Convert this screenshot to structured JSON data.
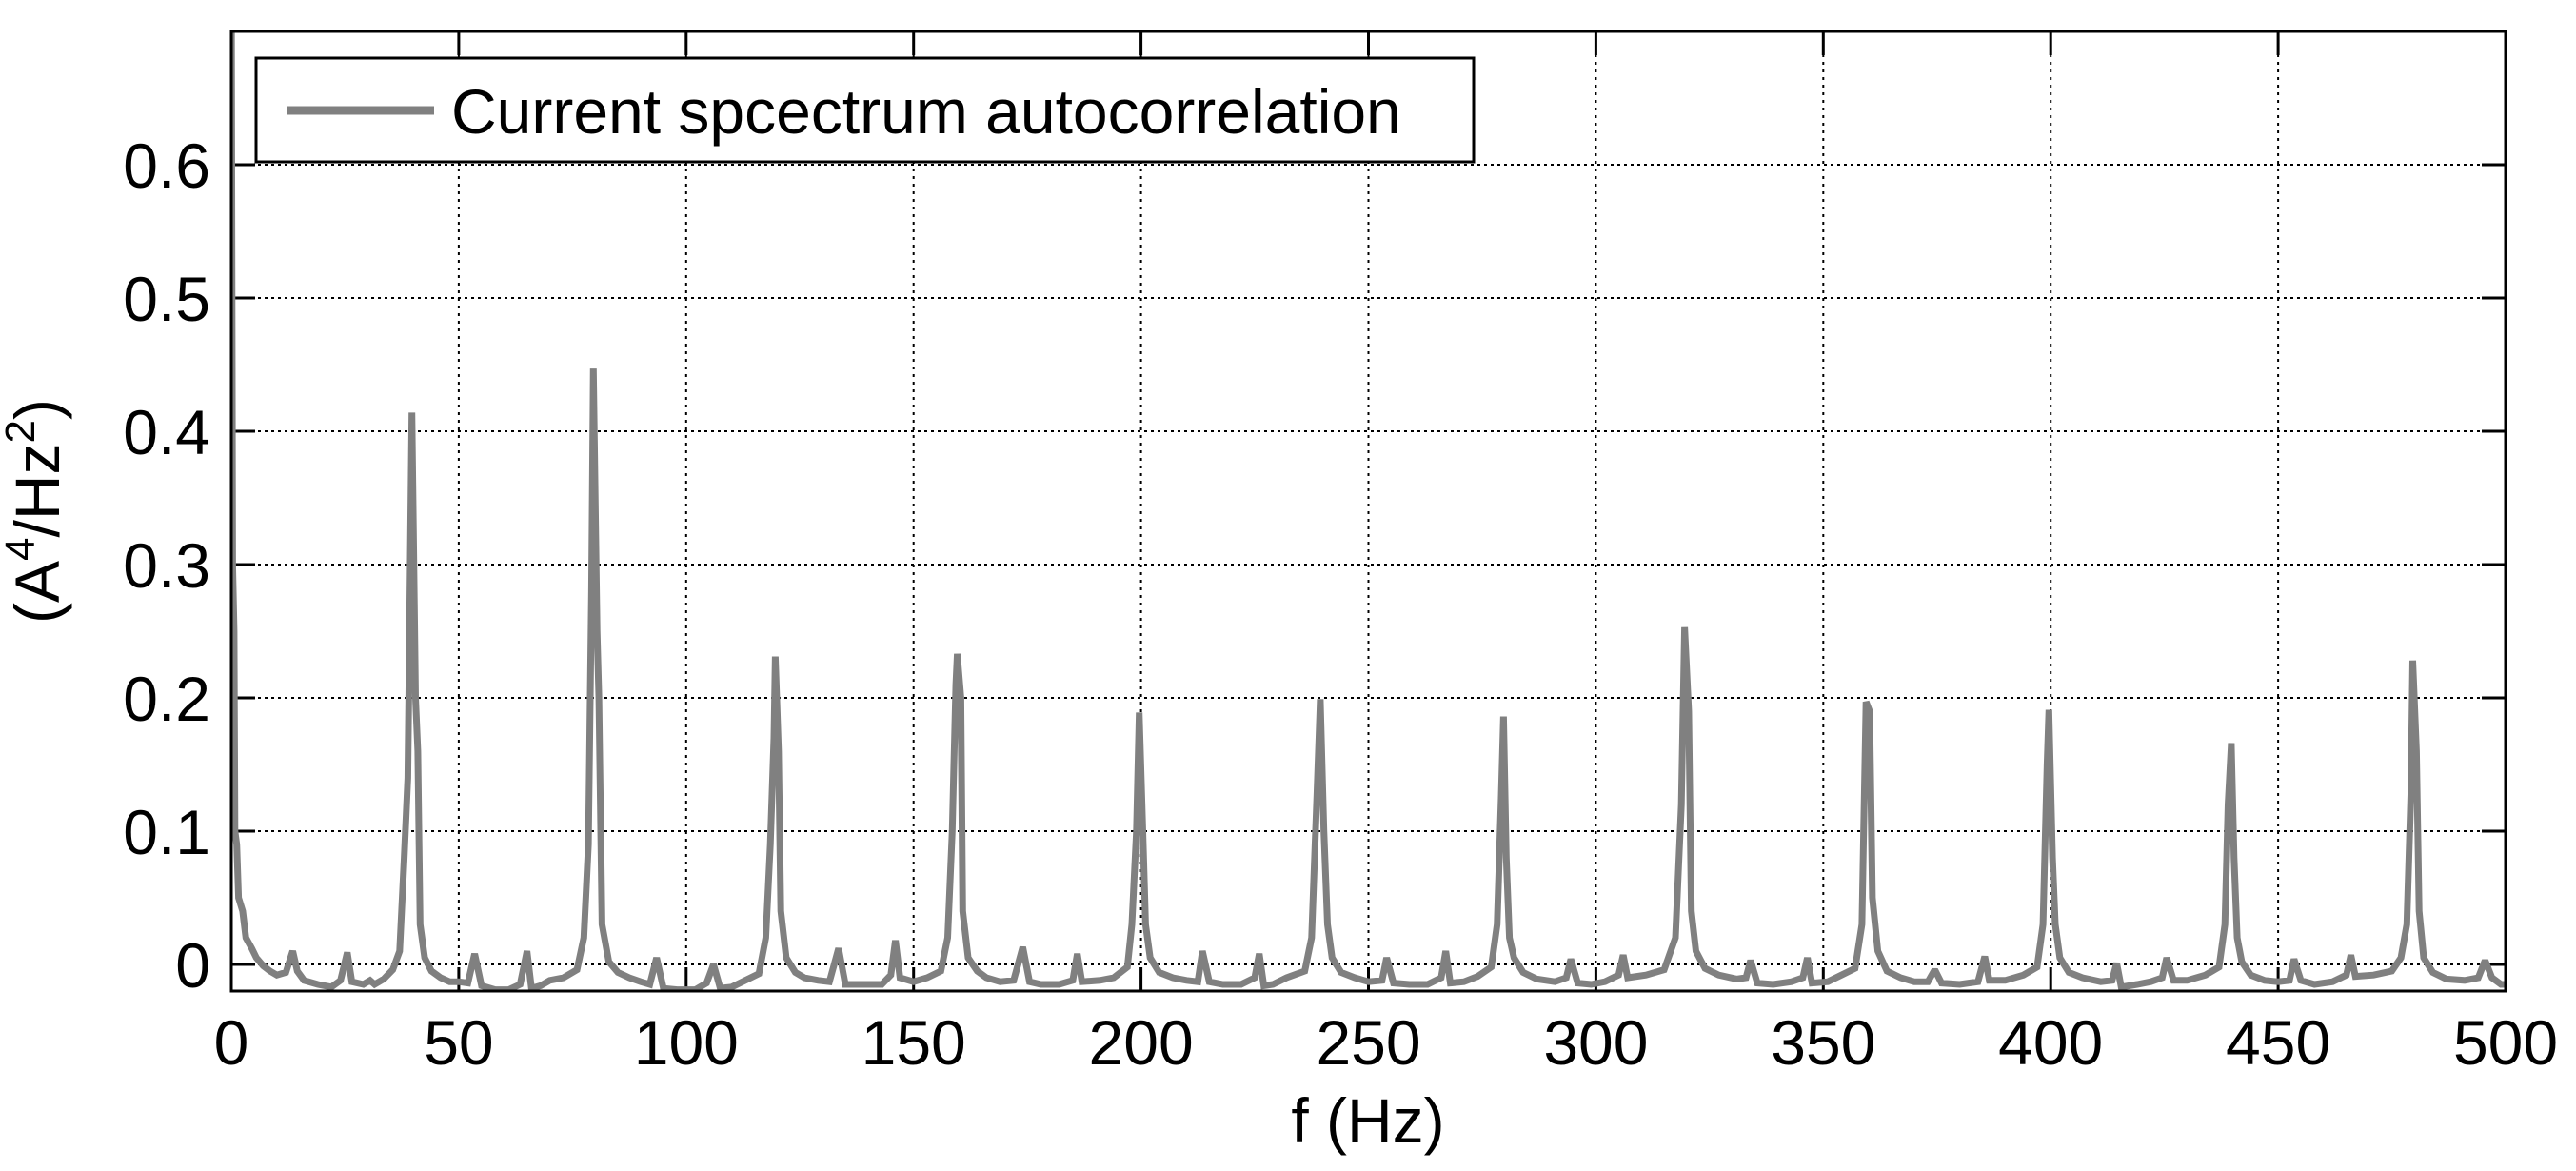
{
  "chart_data": {
    "type": "line",
    "title": "",
    "xlabel": "f (Hz)",
    "ylabel_parts": {
      "open": "(A",
      "sup1": "4",
      "mid": "/Hz",
      "sup2": "2",
      "close": ")"
    },
    "ylabel": "(A^4/Hz^2)",
    "xlim": [
      0,
      500
    ],
    "ylim": [
      -0.02,
      0.7
    ],
    "grid": true,
    "legend_position": "upper-left",
    "xticks": [
      0,
      50,
      100,
      150,
      200,
      250,
      300,
      350,
      400,
      450,
      500
    ],
    "xtick_labels": [
      "0",
      "50",
      "100",
      "150",
      "200",
      "250",
      "300",
      "350",
      "400",
      "450",
      "500"
    ],
    "yticks": [
      0,
      0.1,
      0.2,
      0.3,
      0.4,
      0.5,
      0.6
    ],
    "ytick_labels": [
      "0",
      "0.1",
      "0.2",
      "0.3",
      "0.4",
      "0.5",
      "0.6"
    ],
    "series": [
      {
        "name": "Current spcectrum autocorrelation",
        "color": "#808080",
        "peaks": [
          {
            "f": 40,
            "value": 0.414
          },
          {
            "f": 80,
            "value": 0.447
          },
          {
            "f": 120,
            "value": 0.231
          },
          {
            "f": 160,
            "value": 0.233
          },
          {
            "f": 200,
            "value": 0.189
          },
          {
            "f": 240,
            "value": 0.199
          },
          {
            "f": 280,
            "value": 0.186
          },
          {
            "f": 320,
            "value": 0.253
          },
          {
            "f": 360,
            "value": 0.197
          },
          {
            "f": 400,
            "value": 0.191
          },
          {
            "f": 440,
            "value": 0.166
          },
          {
            "f": 480,
            "value": 0.228
          }
        ],
        "points": [
          [
            0,
            0.75
          ],
          [
            0.3,
            0.3
          ],
          [
            0.6,
            0.25
          ],
          [
            0.8,
            0.1
          ],
          [
            1.2,
            0.09
          ],
          [
            1.6,
            0.05
          ],
          [
            2.5,
            0.04
          ],
          [
            3.2,
            0.02
          ],
          [
            4.5,
            0.012
          ],
          [
            5.5,
            0.005
          ],
          [
            7,
            -0.001
          ],
          [
            8.5,
            -0.005
          ],
          [
            10,
            -0.008
          ],
          [
            12,
            -0.006
          ],
          [
            13.5,
            0.01
          ],
          [
            14.5,
            -0.005
          ],
          [
            16,
            -0.012
          ],
          [
            19,
            -0.015
          ],
          [
            22,
            -0.017
          ],
          [
            24,
            -0.012
          ],
          [
            25.5,
            0.009
          ],
          [
            26.5,
            -0.013
          ],
          [
            29,
            -0.015
          ],
          [
            30.5,
            -0.012
          ],
          [
            31.5,
            -0.015
          ],
          [
            33.5,
            -0.011
          ],
          [
            35.5,
            -0.004
          ],
          [
            37,
            0.01
          ],
          [
            38,
            0.08
          ],
          [
            38.8,
            0.14
          ],
          [
            39.3,
            0.29
          ],
          [
            39.7,
            0.414
          ],
          [
            40.5,
            0.2
          ],
          [
            41,
            0.16
          ],
          [
            41.5,
            0.03
          ],
          [
            42.5,
            0.005
          ],
          [
            44,
            -0.005
          ],
          [
            46,
            -0.01
          ],
          [
            48,
            -0.013
          ],
          [
            50,
            -0.013
          ],
          [
            52,
            -0.014
          ],
          [
            53.5,
            0.008
          ],
          [
            55,
            -0.016
          ],
          [
            58,
            -0.019
          ],
          [
            61,
            -0.019
          ],
          [
            63.5,
            -0.015
          ],
          [
            65,
            0.01
          ],
          [
            66,
            -0.018
          ],
          [
            68,
            -0.016
          ],
          [
            70,
            -0.012
          ],
          [
            73,
            -0.01
          ],
          [
            76,
            -0.004
          ],
          [
            77.5,
            0.02
          ],
          [
            78.5,
            0.09
          ],
          [
            79.2,
            0.28
          ],
          [
            79.6,
            0.447
          ],
          [
            80.4,
            0.25
          ],
          [
            80.8,
            0.2
          ],
          [
            81.5,
            0.03
          ],
          [
            83,
            0.002
          ],
          [
            85,
            -0.006
          ],
          [
            87.5,
            -0.01
          ],
          [
            90,
            -0.013
          ],
          [
            92,
            -0.015
          ],
          [
            93.5,
            0.005
          ],
          [
            95,
            -0.018
          ],
          [
            98,
            -0.019
          ],
          [
            102,
            -0.019
          ],
          [
            104.5,
            -0.014
          ],
          [
            106,
            0
          ],
          [
            107.5,
            -0.018
          ],
          [
            110,
            -0.017
          ],
          [
            113,
            -0.012
          ],
          [
            116,
            -0.007
          ],
          [
            117.5,
            0.02
          ],
          [
            118.5,
            0.09
          ],
          [
            119.3,
            0.17
          ],
          [
            119.6,
            0.231
          ],
          [
            120.3,
            0.16
          ],
          [
            120.8,
            0.04
          ],
          [
            122,
            0.005
          ],
          [
            124,
            -0.006
          ],
          [
            126,
            -0.01
          ],
          [
            129,
            -0.012
          ],
          [
            131.5,
            -0.013
          ],
          [
            133.5,
            0.012
          ],
          [
            135,
            -0.015
          ],
          [
            139,
            -0.015
          ],
          [
            143,
            -0.015
          ],
          [
            145,
            -0.008
          ],
          [
            146,
            0.018
          ],
          [
            147,
            -0.01
          ],
          [
            150,
            -0.013
          ],
          [
            153,
            -0.01
          ],
          [
            156,
            -0.005
          ],
          [
            157.5,
            0.02
          ],
          [
            158.5,
            0.1
          ],
          [
            159.3,
            0.21
          ],
          [
            159.6,
            0.233
          ],
          [
            160.4,
            0.2
          ],
          [
            160.8,
            0.04
          ],
          [
            162,
            0.005
          ],
          [
            164,
            -0.005
          ],
          [
            166,
            -0.01
          ],
          [
            169,
            -0.013
          ],
          [
            172,
            -0.012
          ],
          [
            174,
            0.013
          ],
          [
            175.5,
            -0.013
          ],
          [
            178,
            -0.015
          ],
          [
            182,
            -0.015
          ],
          [
            185,
            -0.012
          ],
          [
            186,
            0.008
          ],
          [
            187,
            -0.013
          ],
          [
            191,
            -0.012
          ],
          [
            194,
            -0.01
          ],
          [
            197,
            -0.002
          ],
          [
            198,
            0.03
          ],
          [
            199,
            0.1
          ],
          [
            199.6,
            0.189
          ],
          [
            200.4,
            0.1
          ],
          [
            201,
            0.03
          ],
          [
            202,
            0.005
          ],
          [
            204,
            -0.006
          ],
          [
            207,
            -0.01
          ],
          [
            210,
            -0.012
          ],
          [
            212.5,
            -0.013
          ],
          [
            213.5,
            0.01
          ],
          [
            215,
            -0.013
          ],
          [
            218,
            -0.015
          ],
          [
            222,
            -0.015
          ],
          [
            225,
            -0.01
          ],
          [
            226,
            0.008
          ],
          [
            227,
            -0.016
          ],
          [
            229,
            -0.015
          ],
          [
            232,
            -0.01
          ],
          [
            236,
            -0.005
          ],
          [
            237.5,
            0.02
          ],
          [
            238.7,
            0.13
          ],
          [
            239.4,
            0.199
          ],
          [
            240.2,
            0.1
          ],
          [
            241,
            0.03
          ],
          [
            242,
            0.005
          ],
          [
            244,
            -0.006
          ],
          [
            247,
            -0.01
          ],
          [
            250,
            -0.013
          ],
          [
            253,
            -0.012
          ],
          [
            254,
            0.005
          ],
          [
            255.5,
            -0.014
          ],
          [
            259,
            -0.015
          ],
          [
            263,
            -0.015
          ],
          [
            266,
            -0.01
          ],
          [
            267,
            0.01
          ],
          [
            268,
            -0.014
          ],
          [
            271,
            -0.013
          ],
          [
            274,
            -0.009
          ],
          [
            277,
            -0.002
          ],
          [
            278.3,
            0.03
          ],
          [
            279.2,
            0.125
          ],
          [
            279.7,
            0.186
          ],
          [
            280.3,
            0.08
          ],
          [
            281,
            0.02
          ],
          [
            282,
            0.005
          ],
          [
            284,
            -0.006
          ],
          [
            287,
            -0.011
          ],
          [
            291,
            -0.013
          ],
          [
            293.5,
            -0.01
          ],
          [
            294.5,
            0.004
          ],
          [
            296,
            -0.014
          ],
          [
            299,
            -0.015
          ],
          [
            302,
            -0.013
          ],
          [
            305,
            -0.008
          ],
          [
            306,
            0.007
          ],
          [
            307,
            -0.01
          ],
          [
            311,
            -0.008
          ],
          [
            315,
            -0.004
          ],
          [
            317.5,
            0.02
          ],
          [
            318.8,
            0.12
          ],
          [
            319.5,
            0.253
          ],
          [
            320.4,
            0.19
          ],
          [
            321,
            0.04
          ],
          [
            322,
            0.01
          ],
          [
            324,
            -0.003
          ],
          [
            327,
            -0.008
          ],
          [
            331,
            -0.011
          ],
          [
            333,
            -0.01
          ],
          [
            334,
            0.003
          ],
          [
            335.5,
            -0.014
          ],
          [
            339,
            -0.015
          ],
          [
            343,
            -0.013
          ],
          [
            345.5,
            -0.01
          ],
          [
            346.5,
            0.005
          ],
          [
            347.5,
            -0.014
          ],
          [
            351,
            -0.013
          ],
          [
            354,
            -0.008
          ],
          [
            357,
            -0.003
          ],
          [
            358.5,
            0.03
          ],
          [
            359.4,
            0.197
          ],
          [
            360.2,
            0.19
          ],
          [
            360.8,
            0.05
          ],
          [
            362,
            0.01
          ],
          [
            364,
            -0.005
          ],
          [
            367,
            -0.01
          ],
          [
            370,
            -0.013
          ],
          [
            373,
            -0.013
          ],
          [
            374.5,
            -0.004
          ],
          [
            376,
            -0.014
          ],
          [
            380,
            -0.015
          ],
          [
            384,
            -0.013
          ],
          [
            385.5,
            0.006
          ],
          [
            386.5,
            -0.012
          ],
          [
            390,
            -0.012
          ],
          [
            394,
            -0.008
          ],
          [
            397,
            -0.002
          ],
          [
            398.3,
            0.03
          ],
          [
            399.2,
            0.15
          ],
          [
            399.6,
            0.191
          ],
          [
            400.4,
            0.08
          ],
          [
            401,
            0.03
          ],
          [
            402,
            0.005
          ],
          [
            404,
            -0.006
          ],
          [
            407,
            -0.01
          ],
          [
            411,
            -0.013
          ],
          [
            413.5,
            -0.012
          ],
          [
            414.5,
            0.001
          ],
          [
            415.5,
            -0.017
          ],
          [
            419,
            -0.015
          ],
          [
            422,
            -0.013
          ],
          [
            424.5,
            -0.01
          ],
          [
            425.5,
            0.005
          ],
          [
            427,
            -0.012
          ],
          [
            430,
            -0.012
          ],
          [
            434,
            -0.008
          ],
          [
            437,
            -0.002
          ],
          [
            438.3,
            0.03
          ],
          [
            439,
            0.12
          ],
          [
            439.7,
            0.166
          ],
          [
            440.3,
            0.08
          ],
          [
            441,
            0.02
          ],
          [
            442,
            0.002
          ],
          [
            444,
            -0.008
          ],
          [
            447,
            -0.012
          ],
          [
            450,
            -0.013
          ],
          [
            452.5,
            -0.012
          ],
          [
            453.5,
            0.004
          ],
          [
            455,
            -0.012
          ],
          [
            458,
            -0.015
          ],
          [
            462,
            -0.013
          ],
          [
            465,
            -0.008
          ],
          [
            466,
            0.007
          ],
          [
            467,
            -0.009
          ],
          [
            471,
            -0.008
          ],
          [
            475,
            -0.005
          ],
          [
            477,
            0.005
          ],
          [
            478.3,
            0.03
          ],
          [
            479.2,
            0.13
          ],
          [
            479.6,
            0.228
          ],
          [
            480.4,
            0.16
          ],
          [
            481,
            0.04
          ],
          [
            482,
            0.005
          ],
          [
            484,
            -0.006
          ],
          [
            487,
            -0.011
          ],
          [
            491,
            -0.012
          ],
          [
            494,
            -0.01
          ],
          [
            495.5,
            0.003
          ],
          [
            497,
            -0.01
          ],
          [
            499,
            -0.015
          ],
          [
            500,
            -0.015
          ]
        ]
      }
    ]
  },
  "legend": {
    "label": "Current spcectrum autocorrelation",
    "line_color": "#808080"
  }
}
